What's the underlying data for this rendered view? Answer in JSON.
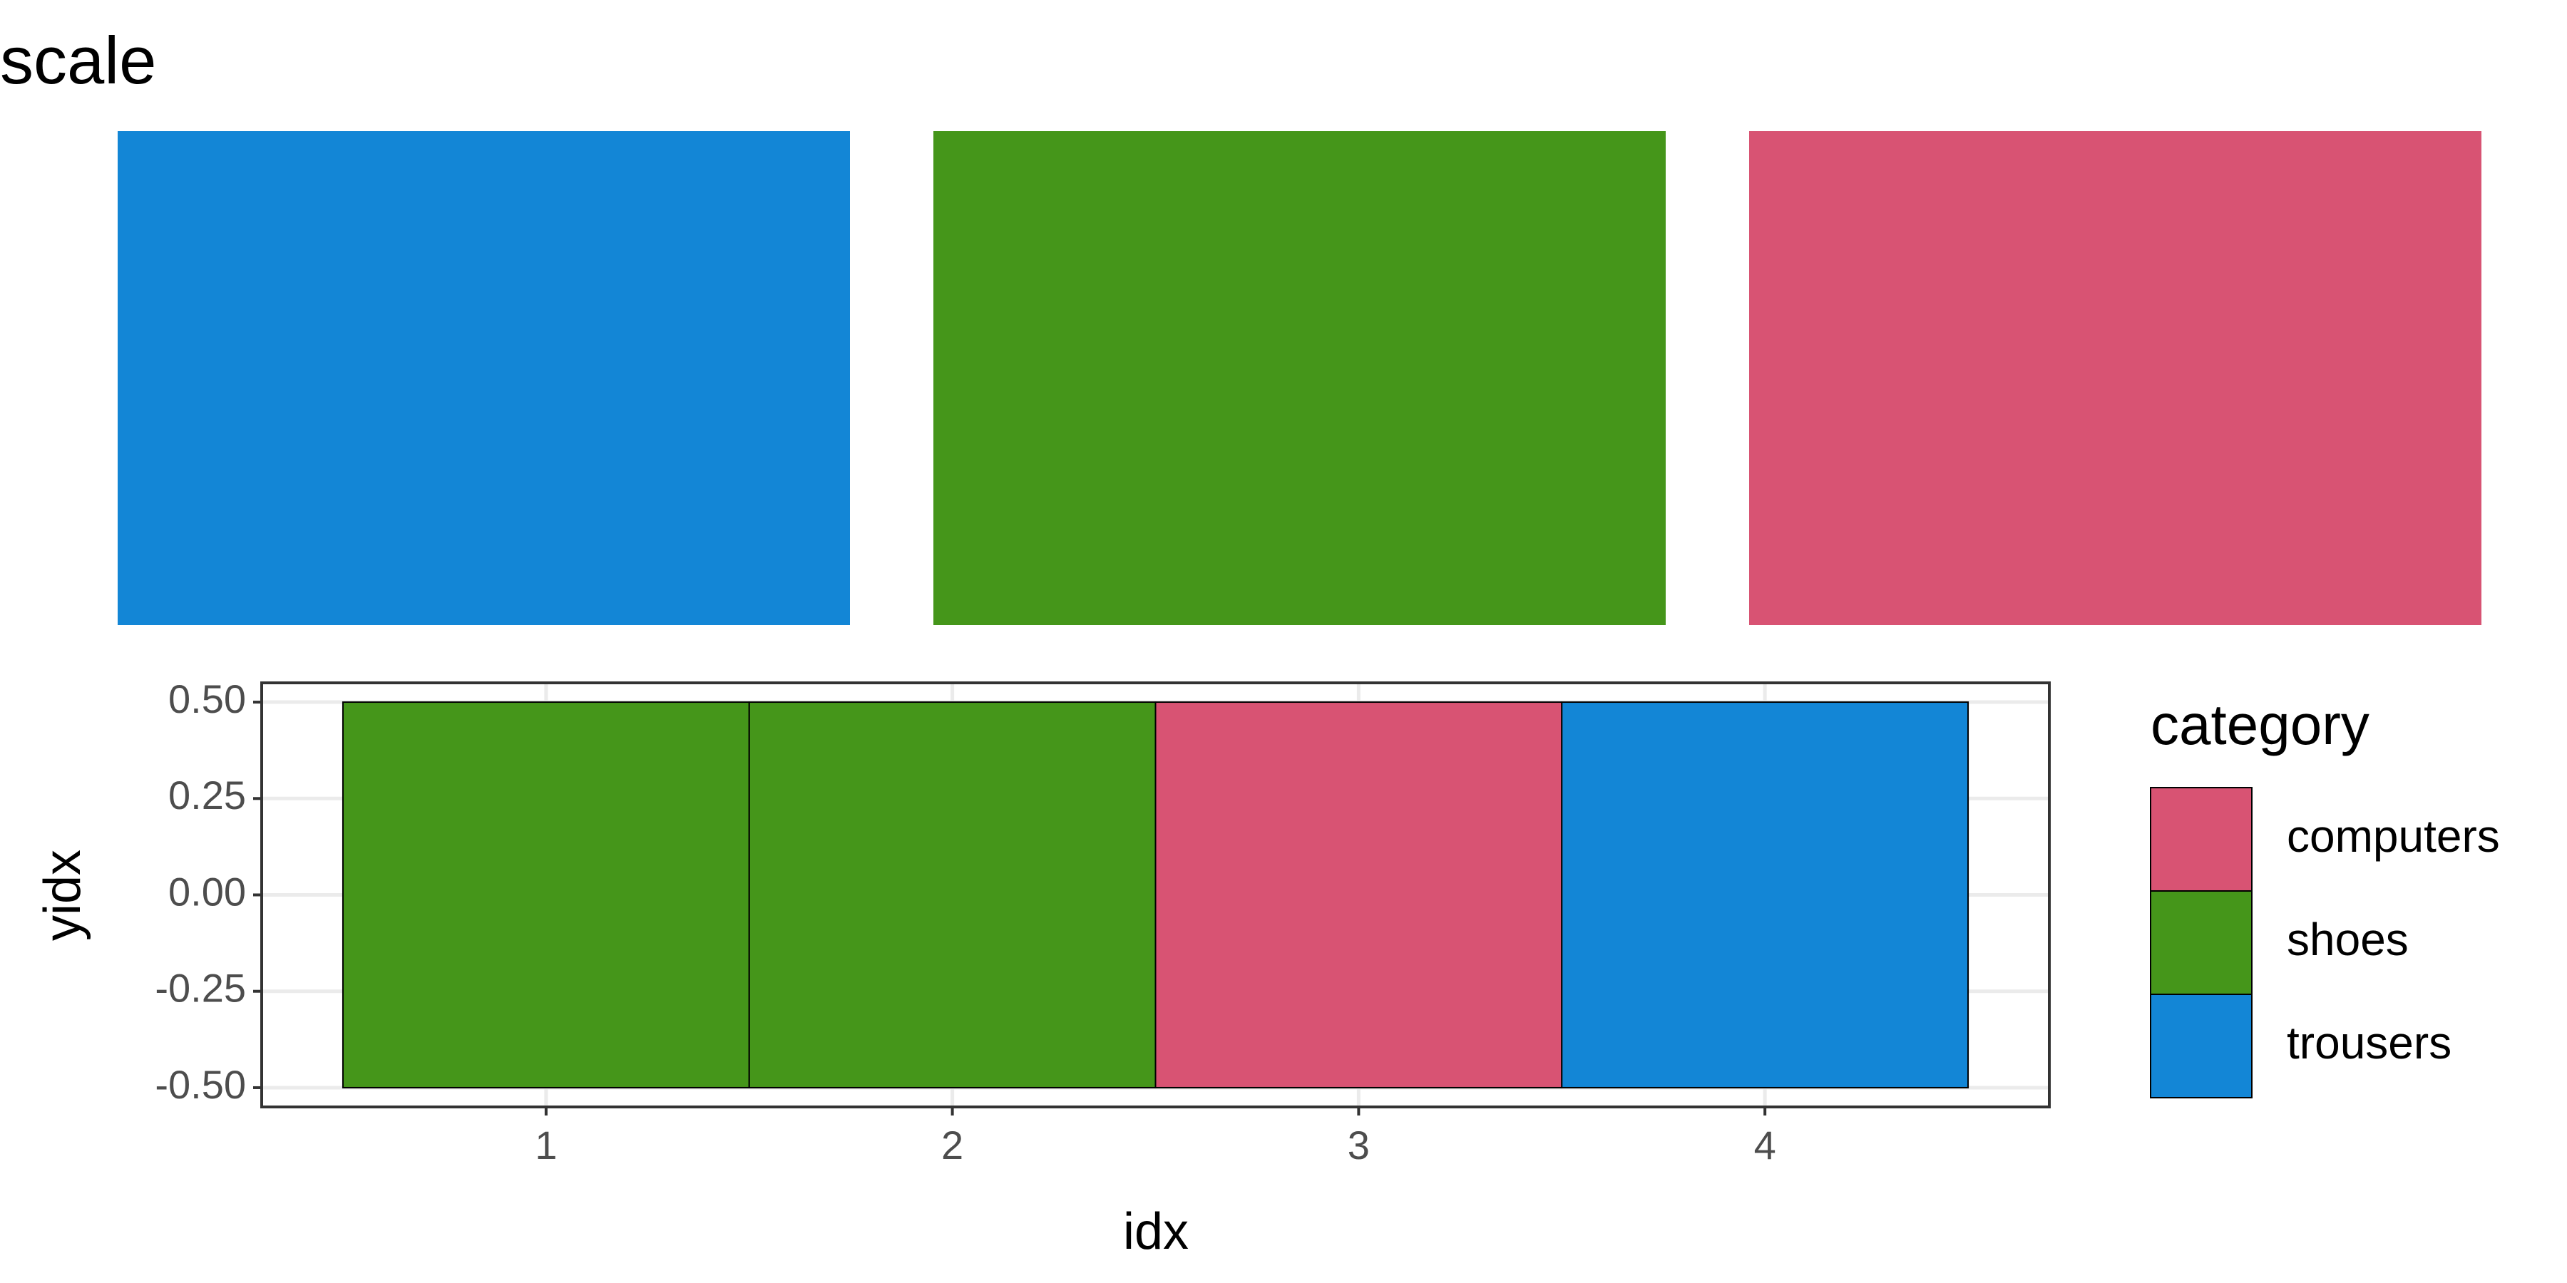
{
  "swatches": {
    "title": "scale",
    "colors": [
      "#1386d6",
      "#45961a",
      "#d85373"
    ]
  },
  "chart_data": {
    "type": "tile",
    "x_label": "idx",
    "y_label": "yidx",
    "series": [
      {
        "name": "computers",
        "color": "#d85373",
        "x": [
          3
        ],
        "y": [
          0
        ]
      },
      {
        "name": "shoes",
        "color": "#45961a",
        "x": [
          1,
          2
        ],
        "y": [
          0,
          0
        ]
      },
      {
        "name": "trousers",
        "color": "#1386d6",
        "x": [
          4
        ],
        "y": [
          0
        ]
      }
    ],
    "tile_width": 1,
    "tile_height": 1,
    "xlim": [
      0.3,
      4.7
    ],
    "xticks": [
      1,
      2,
      3,
      4
    ],
    "ylim": [
      -0.55,
      0.55
    ],
    "yticks": [
      {
        "value": -0.5,
        "label": "-0.50"
      },
      {
        "value": -0.25,
        "label": "-0.25"
      },
      {
        "value": 0,
        "label": "0.00"
      },
      {
        "value": 0.25,
        "label": "0.25"
      },
      {
        "value": 0.5,
        "label": "0.50"
      }
    ],
    "grid": true,
    "legend_title": "category",
    "legend_position": "right"
  }
}
